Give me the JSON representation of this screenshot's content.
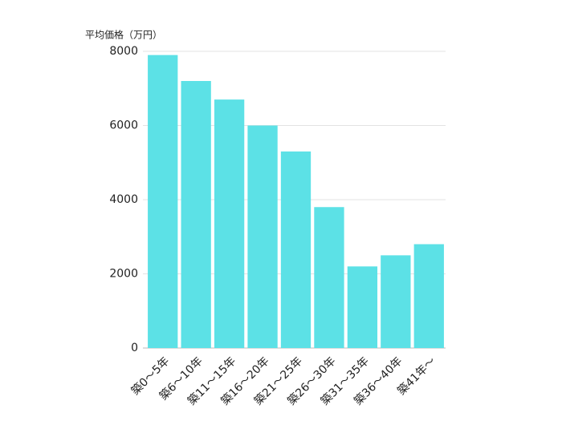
{
  "chart_data": {
    "type": "bar",
    "y_label": "平均価格（万円）",
    "categories": [
      "築0～5年",
      "築6～10年",
      "築11～15年",
      "築16～20年",
      "築21～25年",
      "築26～30年",
      "築31～35年",
      "築36～40年",
      "築41年～"
    ],
    "values": [
      7900,
      7200,
      6700,
      6000,
      5300,
      3800,
      2200,
      2500,
      2800
    ],
    "color": "#5ce1e6",
    "ylim": [
      0,
      8000
    ],
    "yticks": [
      0,
      2000,
      4000,
      6000,
      8000
    ],
    "grid": true
  }
}
